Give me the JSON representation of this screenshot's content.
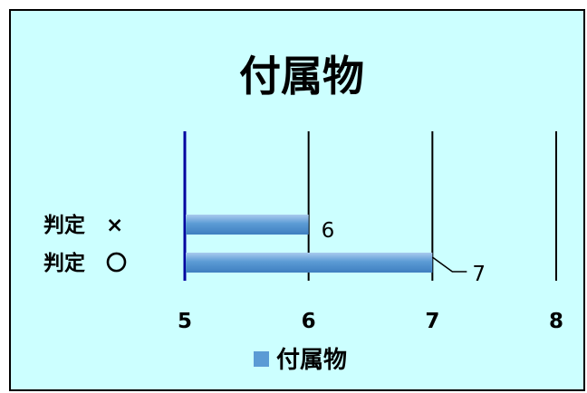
{
  "chart_data": {
    "type": "bar",
    "orientation": "horizontal",
    "title": "付属物",
    "categories": [
      "判定　×",
      "判定　〇"
    ],
    "series": [
      {
        "name": "付属物",
        "values": [
          6,
          7
        ],
        "color": "#5b9bd5"
      }
    ],
    "xlim": [
      5,
      8
    ],
    "xticks": [
      5,
      6,
      7,
      8
    ],
    "grid": true,
    "legend": "bottom",
    "data_labels": true,
    "background": "#ccffff",
    "axis_color": "#0000a0"
  }
}
